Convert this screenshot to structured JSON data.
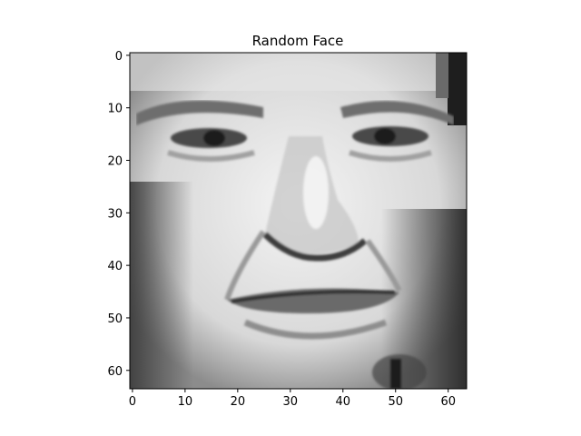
{
  "chart_data": {
    "type": "heatmap",
    "title": "Random Face",
    "xlabel": "",
    "ylabel": "",
    "colormap": "gray",
    "image_size": [
      64,
      64
    ],
    "xlim": [
      -0.5,
      63.5
    ],
    "ylim": [
      63.5,
      -0.5
    ],
    "xticks": [
      0,
      10,
      20,
      30,
      40,
      50,
      60
    ],
    "yticks": [
      0,
      10,
      20,
      30,
      40,
      50,
      60
    ],
    "xtick_labels": [
      "0",
      "10",
      "20",
      "30",
      "40",
      "50",
      "60"
    ],
    "ytick_labels": [
      "0",
      "10",
      "20",
      "30",
      "40",
      "50",
      "60"
    ],
    "grid": false,
    "description_of_content": "grayscale 64x64 pixel photograph of a smiling male face"
  }
}
